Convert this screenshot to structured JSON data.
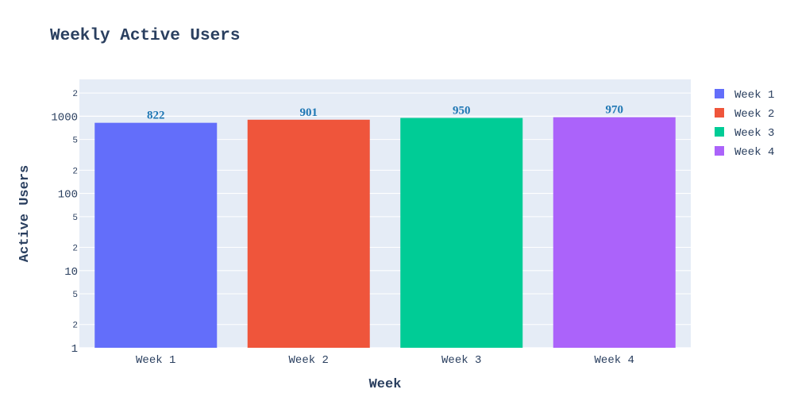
{
  "chart_data": {
    "type": "bar",
    "title": "Weekly Active Users",
    "xlabel": "Week",
    "ylabel": "Active Users",
    "y_scale": "log",
    "ylim": [
      1,
      3000
    ],
    "grid": true,
    "legend_position": "right",
    "categories": [
      "Week 1",
      "Week 2",
      "Week 3",
      "Week 4"
    ],
    "values": [
      822,
      901,
      950,
      970
    ],
    "data_labels": [
      "822",
      "901",
      "950",
      "970"
    ],
    "colors": [
      "#636efa",
      "#ef553b",
      "#00cc96",
      "#ab63fa"
    ],
    "y_major_ticks": [
      {
        "value": 1,
        "label": "1"
      },
      {
        "value": 10,
        "label": "10"
      },
      {
        "value": 100,
        "label": "100"
      },
      {
        "value": 1000,
        "label": "1000"
      }
    ],
    "y_minor_ticks": [
      {
        "value": 2,
        "label": "2"
      },
      {
        "value": 5,
        "label": "5"
      },
      {
        "value": 20,
        "label": "2"
      },
      {
        "value": 50,
        "label": "5"
      },
      {
        "value": 200,
        "label": "2"
      },
      {
        "value": 500,
        "label": "5"
      },
      {
        "value": 2000,
        "label": "2"
      }
    ],
    "legend": [
      "Week 1",
      "Week 2",
      "Week 3",
      "Week 4"
    ]
  },
  "colors": {
    "plot_background": "#e5ecf6",
    "gridline": "#ffffff",
    "text": "#2a3f5f",
    "data_label": "#1f77b4"
  }
}
